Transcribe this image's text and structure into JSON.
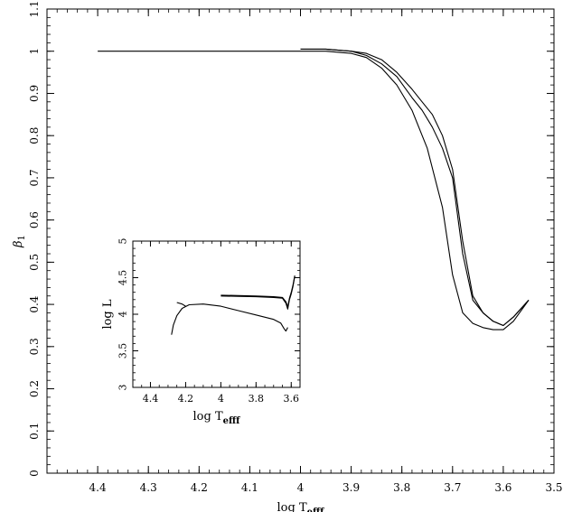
{
  "chart_data": [
    {
      "type": "line",
      "title": "",
      "xlabel": "log T",
      "xlabel_sub": "efff",
      "ylabel": "β",
      "ylabel_sub": "1",
      "xlim": [
        4.5,
        3.5
      ],
      "ylim": [
        0,
        1.1
      ],
      "x_ticks": [
        4.4,
        4.3,
        4.2,
        4.1,
        4,
        3.9,
        3.8,
        3.7,
        3.6,
        3.5
      ],
      "y_ticks": [
        0,
        0.1,
        0.2,
        0.3,
        0.4,
        0.5,
        0.6,
        0.7,
        0.8,
        0.9,
        1,
        1.1
      ],
      "series": [
        {
          "x": [
            4.4,
            4.35,
            4.3,
            4.2,
            4.1,
            4.0,
            3.95,
            3.9,
            3.87,
            3.84,
            3.81,
            3.78,
            3.75,
            3.72,
            3.7,
            3.68,
            3.66,
            3.64,
            3.62,
            3.6,
            3.58,
            3.55
          ],
          "y": [
            1.0,
            1.0,
            1.0,
            1.0,
            1.0,
            1.0,
            1.0,
            0.995,
            0.985,
            0.96,
            0.92,
            0.86,
            0.77,
            0.63,
            0.47,
            0.38,
            0.355,
            0.345,
            0.34,
            0.34,
            0.36,
            0.41
          ]
        },
        {
          "x": [
            4.0,
            3.95,
            3.9,
            3.87,
            3.84,
            3.81,
            3.78,
            3.76,
            3.74,
            3.72,
            3.7,
            3.68,
            3.66,
            3.64,
            3.62,
            3.6,
            3.58,
            3.55
          ],
          "y": [
            1.005,
            1.005,
            1.0,
            0.995,
            0.98,
            0.95,
            0.91,
            0.88,
            0.85,
            0.8,
            0.72,
            0.55,
            0.42,
            0.38,
            0.36,
            0.35,
            0.37,
            0.41
          ]
        },
        {
          "x": [
            4.0,
            3.95,
            3.9,
            3.87,
            3.84,
            3.81,
            3.78,
            3.76,
            3.74,
            3.72,
            3.7,
            3.68,
            3.66,
            3.64,
            3.62,
            3.6,
            3.58,
            3.55
          ],
          "y": [
            1.005,
            1.005,
            1.0,
            0.99,
            0.97,
            0.94,
            0.89,
            0.86,
            0.82,
            0.77,
            0.7,
            0.52,
            0.41,
            0.38,
            0.36,
            0.35,
            0.37,
            0.41
          ]
        }
      ]
    },
    {
      "type": "line",
      "title": "",
      "xlabel": "log T",
      "xlabel_sub": "efff",
      "ylabel": "log L",
      "xlim": [
        4.5,
        3.55
      ],
      "ylim": [
        3,
        5
      ],
      "x_ticks": [
        4.4,
        4.2,
        4,
        3.8,
        3.6
      ],
      "y_ticks": [
        3,
        3.5,
        4,
        4.5,
        5
      ],
      "series": [
        {
          "x": [
            4.28,
            4.27,
            4.25,
            4.22,
            4.18,
            4.1,
            4.0,
            3.9,
            3.8,
            3.7,
            3.66,
            3.64,
            3.63,
            3.62
          ],
          "y": [
            3.72,
            3.85,
            3.98,
            4.08,
            4.13,
            4.14,
            4.11,
            4.05,
            3.99,
            3.93,
            3.88,
            3.8,
            3.77,
            3.82
          ]
        },
        {
          "x": [
            4.25,
            4.22,
            4.2
          ],
          "y": [
            4.16,
            4.14,
            4.11
          ]
        },
        {
          "x": [
            4.0,
            3.9,
            3.8,
            3.7,
            3.65,
            3.63,
            3.62,
            3.61,
            3.6,
            3.59,
            3.58
          ],
          "y": [
            4.25,
            4.245,
            4.24,
            4.23,
            4.22,
            4.15,
            4.07,
            4.2,
            4.28,
            4.38,
            4.52
          ]
        },
        {
          "x": [
            4.0,
            3.9,
            3.8,
            3.7,
            3.65,
            3.63,
            3.62,
            3.61,
            3.6,
            3.59,
            3.58
          ],
          "y": [
            4.26,
            4.255,
            4.25,
            4.24,
            4.23,
            4.17,
            4.1,
            4.22,
            4.3,
            4.4,
            4.53
          ]
        }
      ]
    }
  ]
}
